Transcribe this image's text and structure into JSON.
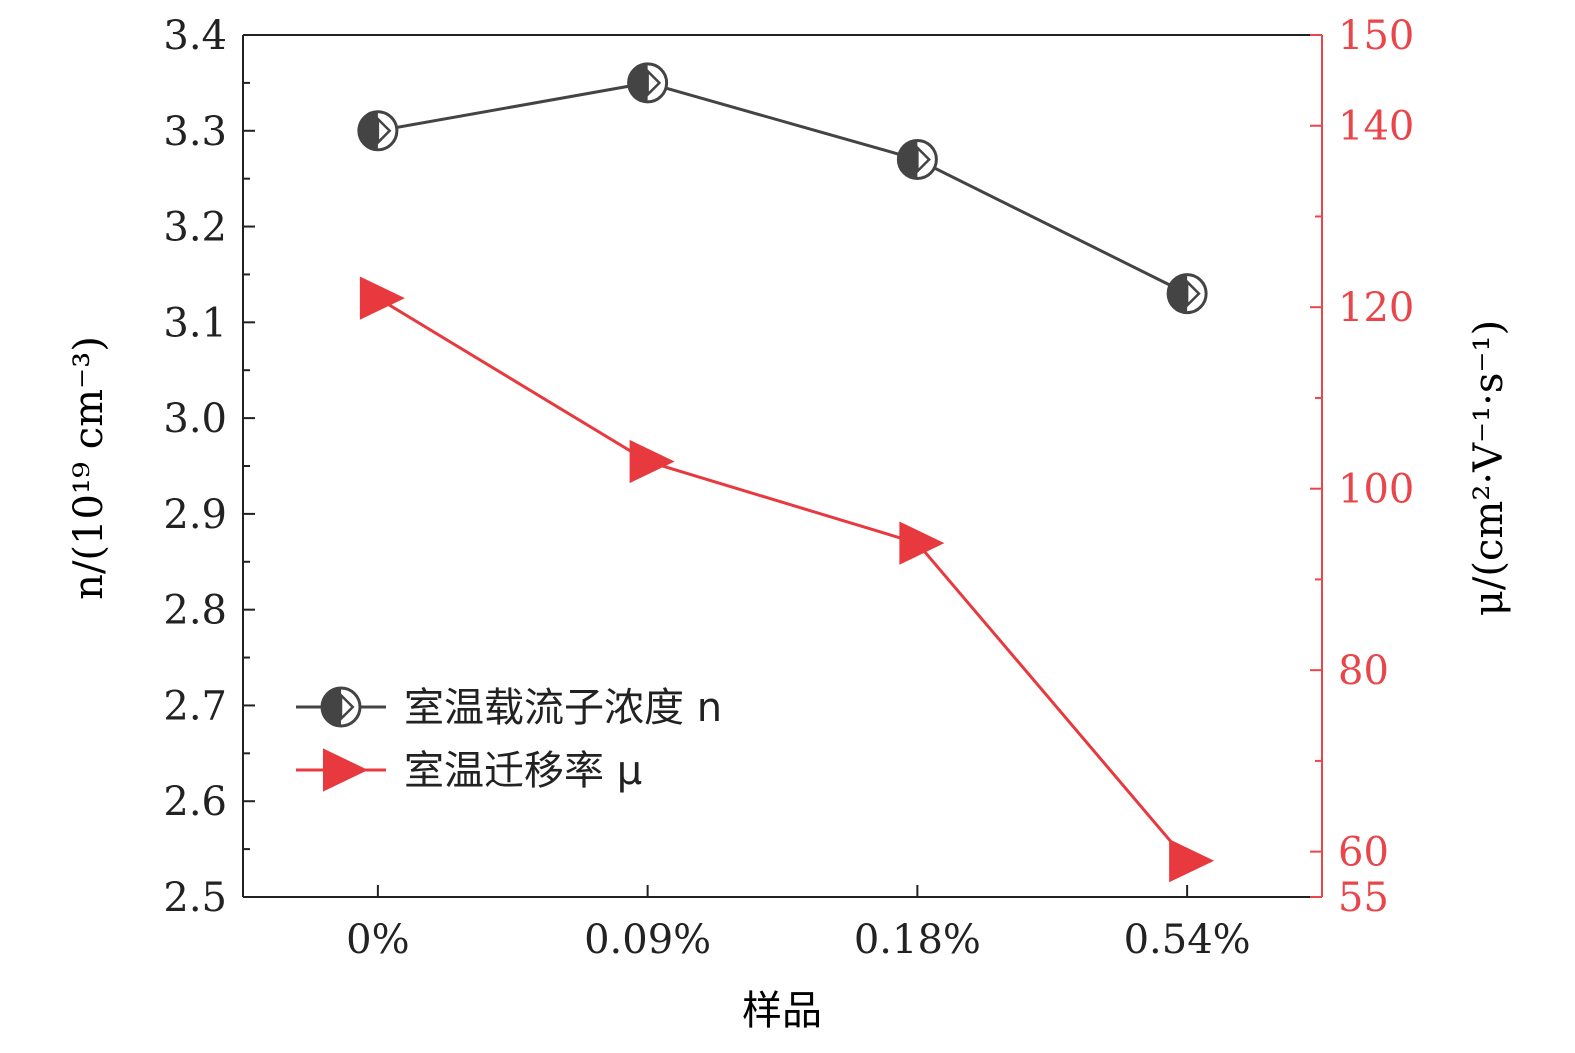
{
  "chart_data": {
    "type": "line",
    "categories": [
      "0%",
      "0.09%",
      "0.18%",
      "0.54%"
    ],
    "xlabel": "样品",
    "y_left": {
      "label": "n/(10¹⁹ cm⁻³)",
      "ylim": [
        2.5,
        3.4
      ],
      "ticks": [
        2.5,
        2.6,
        2.7,
        2.8,
        2.9,
        3.0,
        3.1,
        3.2,
        3.3,
        3.4
      ],
      "tick_labels": [
        "2.5",
        "2.6",
        "2.7",
        "2.8",
        "2.9",
        "3.0",
        "3.1",
        "3.2",
        "3.3",
        "3.4"
      ],
      "color": "#222222"
    },
    "y_right": {
      "label": "μ/(cm²·V⁻¹·s⁻¹)",
      "ylim": [
        55,
        150
      ],
      "ticks": [
        55,
        60,
        80,
        100,
        120,
        140,
        150
      ],
      "tick_labels": [
        "55",
        "60",
        "80",
        "100",
        "120",
        "140",
        "150"
      ],
      "color": "#e8464a"
    },
    "series": [
      {
        "name": "室温载流子浓度 n",
        "axis": "left",
        "values": [
          3.3,
          3.35,
          3.27,
          3.13
        ],
        "color": "#444444",
        "marker": "half-circle"
      },
      {
        "name": "室温迁移率 μ",
        "axis": "right",
        "values": [
          121,
          103,
          94,
          59
        ],
        "color": "#e8393e",
        "marker": "triangle-right"
      }
    ],
    "legend_position": "lower-left",
    "grid": false
  }
}
